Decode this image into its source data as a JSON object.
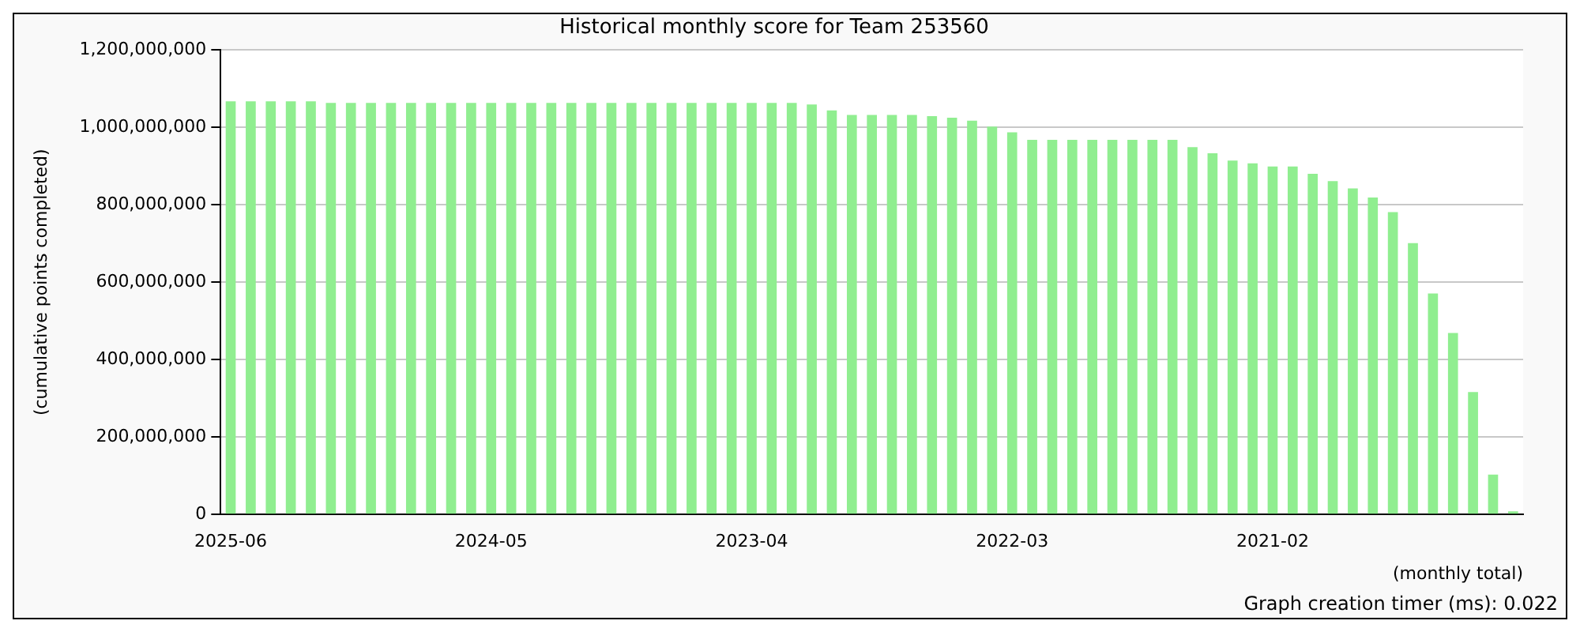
{
  "chart_data": {
    "type": "bar",
    "title": "Historical monthly score for Team 253560",
    "ylabel": "(cumulative points completed)",
    "xlabel": "(monthly total)",
    "annotations": [
      "Graph creation timer (ms): 0.022"
    ],
    "categories": [
      "2025-06",
      null,
      null,
      null,
      null,
      null,
      null,
      null,
      null,
      null,
      null,
      null,
      null,
      "2024-05",
      null,
      null,
      null,
      null,
      null,
      null,
      null,
      null,
      null,
      null,
      null,
      null,
      "2023-04",
      null,
      null,
      null,
      null,
      null,
      null,
      null,
      null,
      null,
      null,
      null,
      null,
      "2022-03",
      null,
      null,
      null,
      null,
      null,
      null,
      null,
      null,
      null,
      null,
      null,
      null,
      "2021-02",
      null,
      null,
      null,
      null,
      null,
      null,
      null,
      null,
      null,
      null,
      null,
      null
    ],
    "values": [
      1067000000,
      1067000000,
      1067000000,
      1067000000,
      1067000000,
      1063000000,
      1063000000,
      1063000000,
      1063000000,
      1063000000,
      1063000000,
      1063000000,
      1063000000,
      1063000000,
      1063000000,
      1063000000,
      1063000000,
      1063000000,
      1063000000,
      1063000000,
      1063000000,
      1063000000,
      1063000000,
      1063000000,
      1063000000,
      1063000000,
      1063000000,
      1063000000,
      1063000000,
      1059000000,
      1044000000,
      1032000000,
      1032000000,
      1032000000,
      1032000000,
      1029000000,
      1025000000,
      1017000000,
      1002000000,
      987000000,
      968000000,
      968000000,
      968000000,
      968000000,
      968000000,
      968000000,
      968000000,
      968000000,
      949000000,
      933000000,
      914000000,
      907000000,
      899000000,
      899000000,
      880000000,
      861000000,
      842000000,
      819000000,
      781000000,
      701000000,
      571000000,
      469000000,
      316000000,
      103000000,
      8000000
    ],
    "color": "#90ee90",
    "ylim": [
      0,
      1200000000
    ],
    "yticks": [
      {
        "value": 0,
        "label": "0"
      },
      {
        "value": 200000000,
        "label": "200,000,000"
      },
      {
        "value": 400000000,
        "label": "400,000,000"
      },
      {
        "value": 600000000,
        "label": "600,000,000"
      },
      {
        "value": 800000000,
        "label": "800,000,000"
      },
      {
        "value": 1000000000,
        "label": "1,000,000,000"
      },
      {
        "value": 1200000000,
        "label": "1,200,000,000"
      }
    ],
    "grid": "y",
    "legend": false
  }
}
